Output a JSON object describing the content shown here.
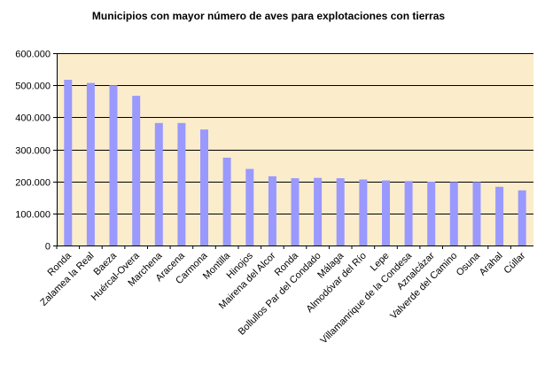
{
  "chart_data": {
    "type": "bar",
    "title": "Municipios con mayor número de aves para explotaciones con tierras",
    "xlabel": "",
    "ylabel": "",
    "ylim": [
      0,
      600000
    ],
    "yticks": [
      0,
      100000,
      200000,
      300000,
      400000,
      500000,
      600000
    ],
    "ytick_labels": [
      "0",
      "100.000",
      "200.000",
      "300.000",
      "400.000",
      "500.000",
      "600.000"
    ],
    "grid": true,
    "legend": "none",
    "categories": [
      "Ronda",
      "Zalamea la Real",
      "Baeza",
      "Huércal-Overa",
      "Marchena",
      "Aracena",
      "Carmona",
      "Montilla",
      "Hinojos",
      "Mairena del Alcor",
      "Ronda",
      "Bollullos Par del Condado",
      "Málaga",
      "Almodóvar del Río",
      "Lepe",
      "Villamanrique de la Condesa",
      "Aznalcázar",
      "Valverde del Camino",
      "Osuna",
      "Arahal",
      "Cúllar"
    ],
    "values": [
      517000,
      507000,
      500000,
      467000,
      382000,
      382000,
      362000,
      274000,
      239000,
      216000,
      210000,
      211000,
      210000,
      206000,
      203000,
      201000,
      199000,
      198000,
      198000,
      183000,
      172000
    ],
    "colors": {
      "bar": "#9999ff",
      "bar_edge": "#8080e0",
      "plot_background": "#fbeccb",
      "gridline": "#000000",
      "axis": "#000000"
    }
  }
}
